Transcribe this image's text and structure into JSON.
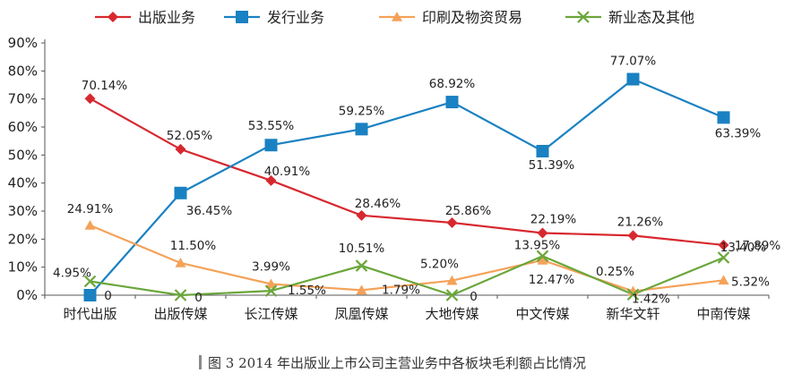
{
  "chart_data": {
    "type": "line",
    "categories": [
      "时代出版",
      "出版传媒",
      "长江传媒",
      "凤凰传媒",
      "大地传媒",
      "中文传媒",
      "新华文轩",
      "中南传媒"
    ],
    "ylim": [
      0,
      90
    ],
    "yticks": [
      "0%",
      "10%",
      "20%",
      "30%",
      "40%",
      "50%",
      "60%",
      "70%",
      "80%",
      "90%"
    ],
    "grid": false,
    "legend_position": "top",
    "series": [
      {
        "name": "出版业务",
        "color": "#d7282f",
        "marker": "diamond",
        "values": [
          70.14,
          52.05,
          40.91,
          28.46,
          25.86,
          22.19,
          21.26,
          17.89
        ],
        "labels": [
          "70.14%",
          "52.05%",
          "40.91%",
          "28.46%",
          "25.86%",
          "22.19%",
          "21.26%",
          "17.89%"
        ]
      },
      {
        "name": "发行业务",
        "color": "#1a81c2",
        "marker": "square",
        "values": [
          0,
          36.45,
          53.55,
          59.25,
          68.92,
          51.39,
          77.07,
          63.39
        ],
        "labels": [
          "0",
          "36.45%",
          "53.55%",
          "59.25%",
          "68.92%",
          "51.39%",
          "77.07%",
          "63.39%"
        ]
      },
      {
        "name": "印刷及物资贸易",
        "color": "#f4a259",
        "marker": "triangle",
        "values": [
          24.91,
          11.5,
          3.99,
          1.79,
          5.2,
          12.47,
          1.42,
          5.32
        ],
        "labels": [
          "24.91%",
          "11.50%",
          "3.99%",
          "1.79%",
          "5.20%",
          "12.47%",
          "1.42%",
          "5.32%"
        ]
      },
      {
        "name": "新业态及其他",
        "color": "#6aa63a",
        "marker": "x",
        "values": [
          4.95,
          0,
          1.55,
          10.51,
          0,
          13.95,
          0.25,
          13.4
        ],
        "labels": [
          "4.95%",
          "0",
          "1.55%",
          "10.51%",
          "0",
          "13.95%",
          "0.25%",
          "13.40%"
        ]
      }
    ]
  },
  "caption": "图 3  2014 年出版业上市公司主营业务中各板块毛利额占比情况"
}
